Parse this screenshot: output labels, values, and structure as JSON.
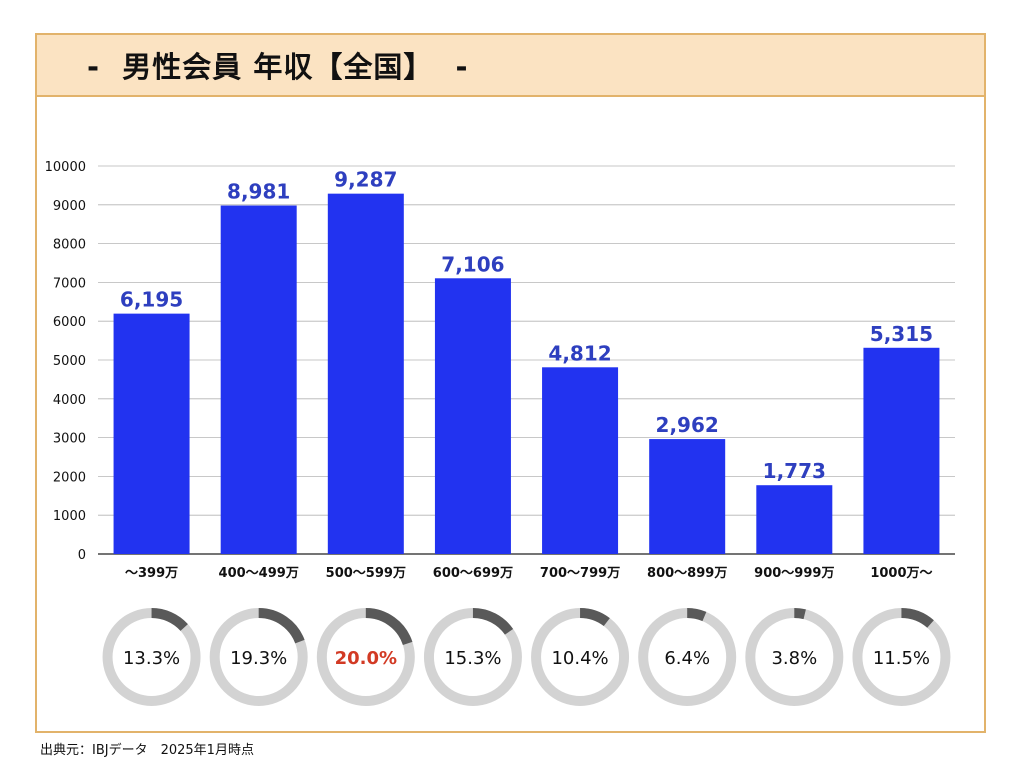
{
  "title": "-  男性会員 年収【全国】  -",
  "source": "出典元：IBJデータ　2025年1月時点",
  "colors": {
    "bar": "#2233f0",
    "label": "#2e3fbf",
    "frame": "#e2b36b",
    "header_bg": "#fbe3c2",
    "ring_track": "#d3d3d3",
    "ring_fill": "#595959",
    "highlight": "#d23a24"
  },
  "chart_data": {
    "type": "bar",
    "categories": [
      "〜399万",
      "400〜499万",
      "500〜599万",
      "600〜699万",
      "700〜799万",
      "800〜899万",
      "900〜999万",
      "1000万〜"
    ],
    "values": [
      6195,
      8981,
      9287,
      7106,
      4812,
      2962,
      1773,
      5315
    ],
    "value_labels": [
      "6,195",
      "8,981",
      "9,287",
      "7,106",
      "4,812",
      "2,962",
      "1,773",
      "5,315"
    ],
    "ylim": [
      0,
      10000
    ],
    "yticks": [
      "0",
      "1000",
      "2000",
      "3000",
      "4000",
      "5000",
      "6000",
      "7000",
      "8000",
      "9000",
      "10000"
    ],
    "grid": true,
    "legend": "none",
    "percentages": [
      13.3,
      19.3,
      20.0,
      15.3,
      10.4,
      6.4,
      3.8,
      11.5
    ],
    "percentage_labels": [
      "13.3%",
      "19.3%",
      "20.0%",
      "15.3%",
      "10.4%",
      "6.4%",
      "3.8%",
      "11.5%"
    ],
    "highlight_index": 2
  }
}
